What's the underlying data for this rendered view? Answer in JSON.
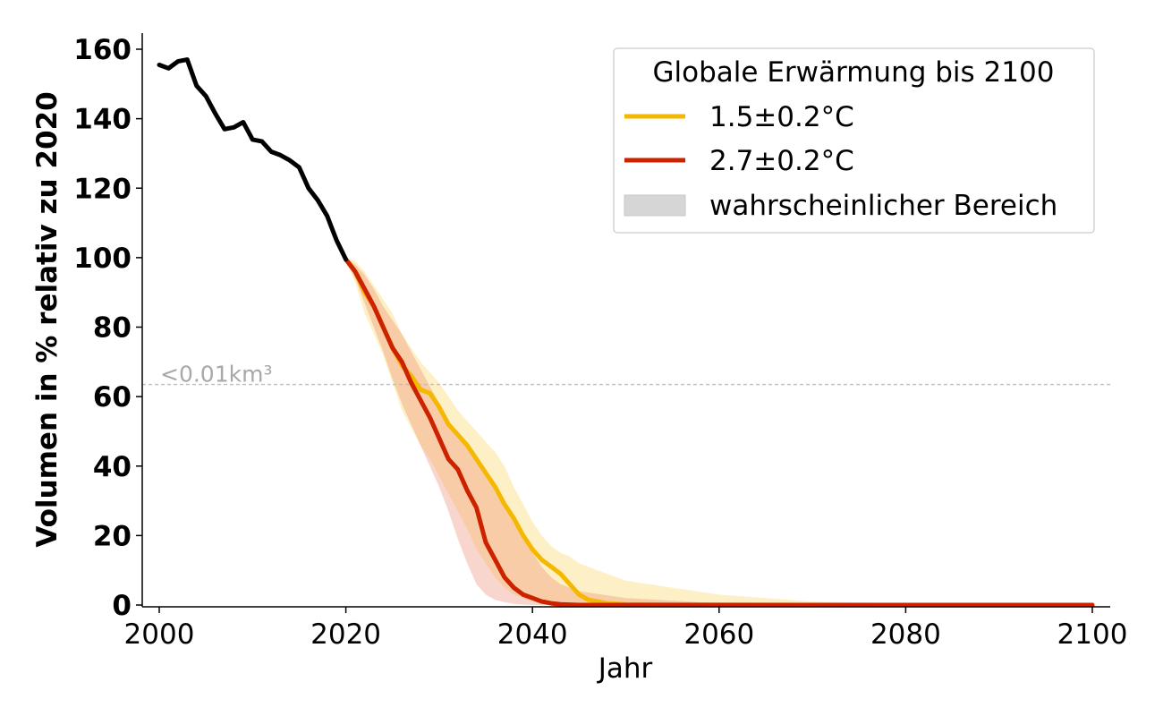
{
  "chart_data": {
    "type": "line",
    "xlabel": "Jahr",
    "ylabel": "Volumen in % relativ zu 2020",
    "xlim": [
      1998,
      2102
    ],
    "ylim": [
      0,
      164
    ],
    "x_ticks": [
      2000,
      2020,
      2040,
      2060,
      2080,
      2100
    ],
    "x_tick_labels": [
      "2000",
      "2020",
      "2040",
      "2060",
      "2080",
      "2100"
    ],
    "y_ticks": [
      0,
      20,
      40,
      60,
      80,
      100,
      120,
      140,
      160
    ],
    "y_tick_labels": [
      "0",
      "20",
      "40",
      "60",
      "80",
      "100",
      "120",
      "140",
      "160"
    ],
    "grid": false,
    "legend": {
      "title": "Globale Erwärmung bis 2100",
      "placement": "top-right",
      "entries": [
        {
          "label": "1.5±0.2°C",
          "color": "#f5b800",
          "kind": "line"
        },
        {
          "label": "2.7±0.2°C",
          "color": "#cc2200",
          "kind": "line"
        },
        {
          "label": "wahrscheinlicher Bereich",
          "color": "#d6d6d6",
          "kind": "patch"
        }
      ]
    },
    "threshold": {
      "label": "<0.01km³",
      "y": 63.5,
      "color": "#bdbdbd"
    },
    "observed": {
      "color": "#000000",
      "x": [
        2000,
        2001,
        2002,
        2003,
        2004,
        2005,
        2006,
        2007,
        2008,
        2009,
        2010,
        2011,
        2012,
        2013,
        2014,
        2015,
        2016,
        2017,
        2018,
        2019,
        2020
      ],
      "y": [
        155.5,
        154.5,
        156.5,
        157,
        149.5,
        146.5,
        141.5,
        137,
        137.5,
        139,
        134,
        133.5,
        130.5,
        129.5,
        128,
        126,
        120,
        116.5,
        112,
        105,
        99.5
      ]
    },
    "series": [
      {
        "name": "1.5±0.2°C",
        "color": "#f5b800",
        "band_color": "#fdd86a",
        "x": [
          2020,
          2021,
          2022,
          2023,
          2024,
          2025,
          2026,
          2027,
          2028,
          2029,
          2030,
          2031,
          2032,
          2033,
          2034,
          2035,
          2036,
          2037,
          2038,
          2039,
          2040,
          2041,
          2042,
          2043,
          2044,
          2045,
          2046,
          2047,
          2048,
          2049,
          2050,
          2055,
          2060,
          2070,
          2080,
          2090,
          2100
        ],
        "y": [
          99.5,
          96,
          90,
          86,
          80,
          74,
          69,
          66,
          62,
          61,
          57,
          52,
          49,
          46,
          42,
          38,
          34,
          29,
          25,
          20,
          16,
          13,
          11,
          9,
          6,
          3,
          1.5,
          1,
          0.5,
          0.3,
          0.2,
          0.1,
          0.05,
          0,
          0,
          0,
          0
        ],
        "lower": [
          99,
          93,
          84,
          78,
          72,
          64,
          56,
          51,
          46,
          42,
          37,
          32,
          27,
          22,
          16,
          12,
          8,
          5,
          3,
          2,
          1,
          0.5,
          0.3,
          0.2,
          0.1,
          0,
          0,
          0,
          0,
          0,
          0,
          0,
          0,
          0,
          0,
          0,
          0
        ],
        "upper": [
          100,
          99,
          96,
          92,
          88,
          84,
          78,
          74,
          70,
          67,
          64,
          60,
          56,
          53,
          50,
          47,
          44,
          40,
          34,
          29,
          24,
          20,
          17,
          15,
          14,
          12,
          11,
          10,
          9,
          8,
          7,
          5,
          3,
          1,
          0.5,
          0.2,
          0
        ]
      },
      {
        "name": "2.7±0.2°C",
        "color": "#cc2200",
        "band_color": "#e87f62",
        "x": [
          2020,
          2021,
          2022,
          2023,
          2024,
          2025,
          2026,
          2027,
          2028,
          2029,
          2030,
          2031,
          2032,
          2033,
          2034,
          2035,
          2036,
          2037,
          2038,
          2039,
          2040,
          2041,
          2042,
          2043,
          2044,
          2045,
          2050,
          2060,
          2070,
          2080,
          2090,
          2100
        ],
        "y": [
          99.5,
          96,
          91,
          86,
          80,
          74,
          70,
          64,
          59,
          54,
          48,
          42,
          39,
          33,
          28,
          18,
          13,
          8,
          5,
          3,
          2,
          1,
          0.5,
          0.2,
          0.1,
          0,
          0,
          0,
          0,
          0,
          0,
          0
        ],
        "lower": [
          99,
          94,
          87,
          80,
          73,
          65,
          58,
          52,
          46,
          40,
          34,
          27,
          19,
          12,
          6,
          3,
          1.5,
          0.8,
          0.3,
          0.1,
          0,
          0,
          0,
          0,
          0,
          0,
          0,
          0,
          0,
          0,
          0,
          0
        ],
        "upper": [
          100,
          98,
          95,
          91,
          86,
          82,
          78,
          73,
          68,
          63,
          58,
          53,
          49,
          46,
          43,
          39,
          35,
          30,
          25,
          20,
          15,
          11,
          8,
          6,
          5,
          4,
          2,
          0.5,
          0,
          0,
          0,
          0
        ]
      }
    ]
  }
}
